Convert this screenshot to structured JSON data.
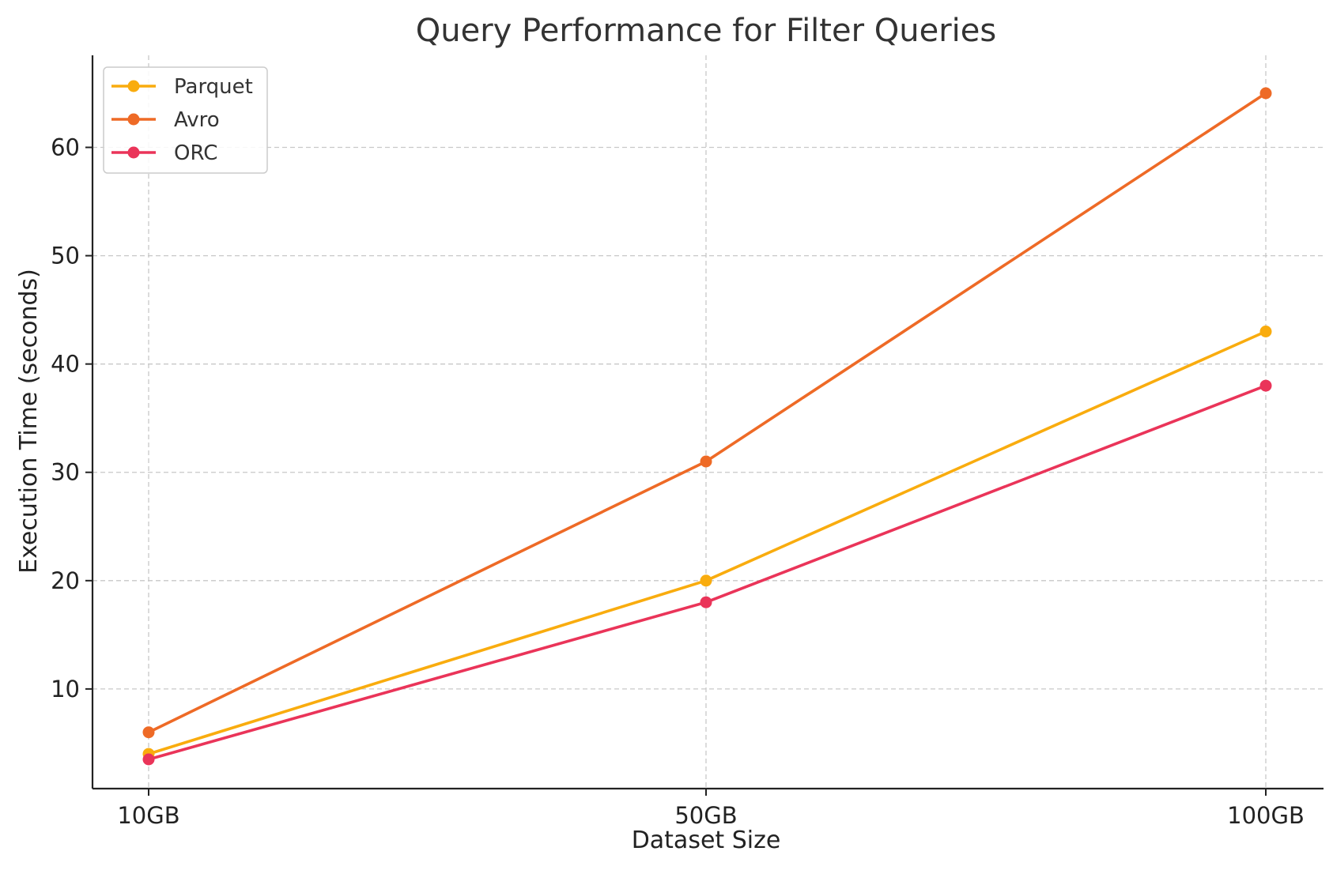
{
  "chart_data": {
    "type": "line",
    "title": "Query Performance for Filter Queries",
    "xlabel": "Dataset Size",
    "ylabel": "Execution Time (seconds)",
    "categories": [
      "10GB",
      "50GB",
      "100GB"
    ],
    "ylim": [
      0.8,
      68.5
    ],
    "yticks": [
      10,
      20,
      30,
      40,
      50,
      60
    ],
    "grid": true,
    "legend_position": "top-left",
    "series": [
      {
        "name": "Parquet",
        "color": "#F9AC0E",
        "values": [
          4,
          20,
          43
        ]
      },
      {
        "name": "Avro",
        "color": "#EE6A26",
        "values": [
          6,
          31,
          65
        ]
      },
      {
        "name": "ORC",
        "color": "#EA3459",
        "values": [
          3.5,
          18,
          38
        ]
      }
    ]
  }
}
